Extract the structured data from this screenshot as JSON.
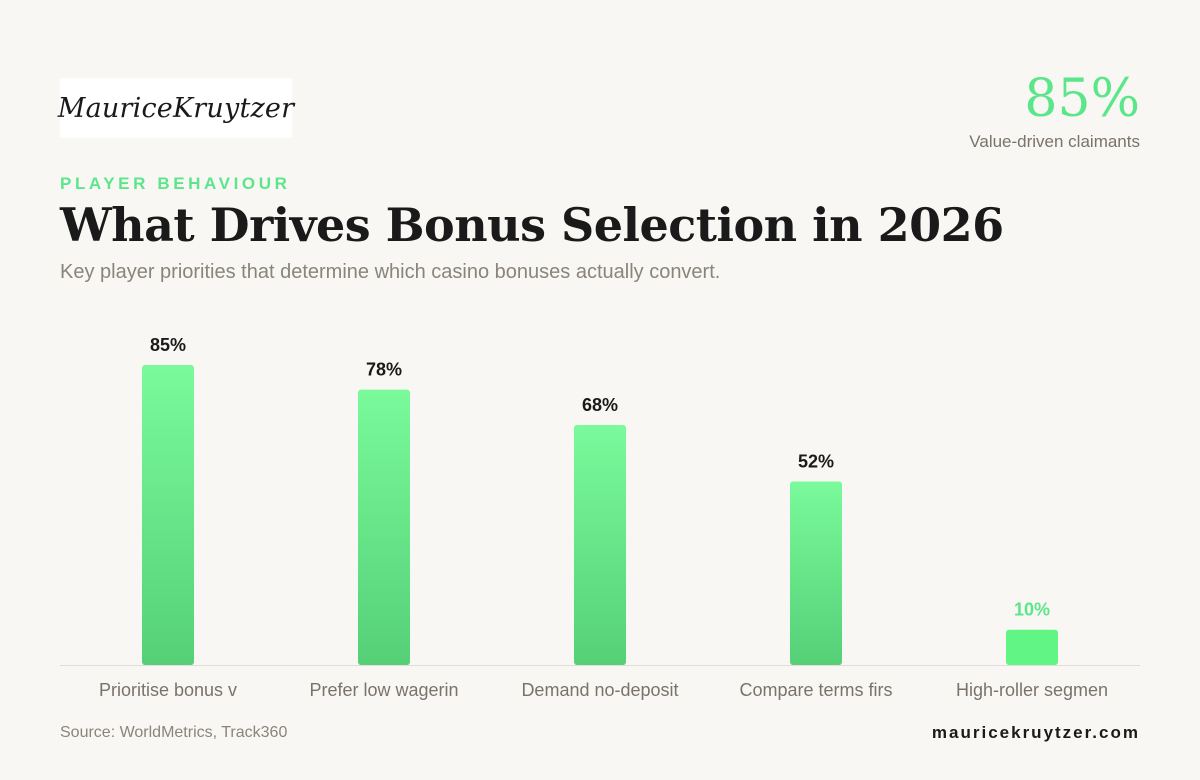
{
  "brand": {
    "logo_text": "MauriceKruytzer"
  },
  "highlight": {
    "value": "85%",
    "label": "Value-driven claimants"
  },
  "header": {
    "eyebrow": "PLAYER BEHAVIOUR",
    "title": "What Drives Bonus Selection in 2026",
    "subtitle": "Key player priorities that determine which casino bonuses actually convert."
  },
  "chart_data": {
    "type": "bar",
    "categories": [
      "Prioritise bonus v",
      "Prefer low wagerin",
      "Demand no-deposit",
      "Compare terms firs",
      "High-roller segmen"
    ],
    "values": [
      85,
      78,
      68,
      52,
      10
    ],
    "value_labels": [
      "85%",
      "78%",
      "68%",
      "52%",
      "10%"
    ],
    "ylim": [
      0,
      100
    ],
    "grid": false,
    "colors": {
      "bar_top": "#7afa9b",
      "bar_bottom": "#55d077",
      "highlight_bar": "#60f585",
      "label_default": "#1a1a1a",
      "label_highlight": "#5ce68a"
    },
    "highlight_index": 4
  },
  "footer": {
    "source": "Source: WorldMetrics, Track360",
    "site": "mauricekruytzer.com"
  }
}
